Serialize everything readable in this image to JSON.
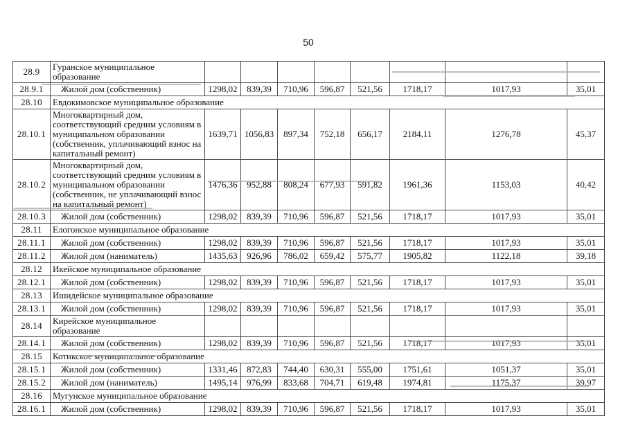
{
  "page_number": "50",
  "table": {
    "rows": [
      {
        "num": "28.9",
        "kind": "section_empty",
        "name": "Гуранское муниципальное образование"
      },
      {
        "num": "28.9.1",
        "kind": "data",
        "name": "Жилой дом (собственник)",
        "values": [
          "1298,02",
          "839,39",
          "710,96",
          "596,87",
          "521,56",
          "1718,17",
          "1017,93",
          "35,01"
        ]
      },
      {
        "num": "28.10",
        "kind": "section_span",
        "name": "Евдокимовское муниципальное образование"
      },
      {
        "num": "28.10.1",
        "kind": "data",
        "name": "Многоквартирный дом, соответствующий средним условиям в муниципальном образовании (собственник, уплачивающий взнос на капитальный ремонт)",
        "values": [
          "1639,71",
          "1056,83",
          "897,34",
          "752,18",
          "656,17",
          "2184,11",
          "1276,78",
          "45,37"
        ]
      },
      {
        "num": "28.10.2",
        "kind": "data",
        "name": "Многоквартирный дом, соответствующий средним условиям в муниципальном образовании (собственник, не уплачивающий взнос на капитальный ремонт)",
        "values": [
          "1476,36",
          "952,88",
          "808,24",
          "677,93",
          "591,82",
          "1961,36",
          "1153,03",
          "40,42"
        ]
      },
      {
        "num": "28.10.3",
        "kind": "data",
        "name": "Жилой дом (собственник)",
        "values": [
          "1298,02",
          "839,39",
          "710,96",
          "596,87",
          "521,56",
          "1718,17",
          "1017,93",
          "35,01"
        ]
      },
      {
        "num": "28.11",
        "kind": "section_span",
        "name": "Елогонское муниципальное образование"
      },
      {
        "num": "28.11.1",
        "kind": "data",
        "name": "Жилой дом (собственник)",
        "values": [
          "1298,02",
          "839,39",
          "710,96",
          "596,87",
          "521,56",
          "1718,17",
          "1017,93",
          "35,01"
        ]
      },
      {
        "num": "28.11.2",
        "kind": "data",
        "name": "Жилой дом (наниматель)",
        "values": [
          "1435,63",
          "926,96",
          "786,02",
          "659,42",
          "575,77",
          "1905,82",
          "1122,18",
          "39,18"
        ]
      },
      {
        "num": "28.12",
        "kind": "section_span",
        "name": "Икейское муниципальное образование"
      },
      {
        "num": "28.12.1",
        "kind": "data",
        "name": "Жилой дом (собственник)",
        "values": [
          "1298,02",
          "839,39",
          "710,96",
          "596,87",
          "521,56",
          "1718,17",
          "1017,93",
          "35,01"
        ]
      },
      {
        "num": "28.13",
        "kind": "section_span",
        "name": "Ишидейское муниципальное образование"
      },
      {
        "num": "28.13.1",
        "kind": "data",
        "name": "Жилой дом (собственник)",
        "values": [
          "1298,02",
          "839,39",
          "710,96",
          "596,87",
          "521,56",
          "1718,17",
          "1017,93",
          "35,01"
        ]
      },
      {
        "num": "28.14",
        "kind": "section_empty",
        "name": "Кирейское муниципальное образование"
      },
      {
        "num": "28.14.1",
        "kind": "data",
        "name": "Жилой дом (собственник)",
        "values": [
          "1298,02",
          "839,39",
          "710,96",
          "596,87",
          "521,56",
          "1718,17",
          "1017,93",
          "35,01"
        ]
      },
      {
        "num": "28.15",
        "kind": "section_span",
        "name": "Котикское муниципальное образование"
      },
      {
        "num": "28.15.1",
        "kind": "data",
        "name": "Жилой дом (собственник)",
        "values": [
          "1331,46",
          "872,83",
          "744,40",
          "630,31",
          "555,00",
          "1751,61",
          "1051,37",
          "35,01"
        ]
      },
      {
        "num": "28.15.2",
        "kind": "data",
        "name": "Жилой дом (наниматель)",
        "values": [
          "1495,14",
          "976,99",
          "833,68",
          "704,71",
          "619,48",
          "1974,81",
          "1175,37",
          "39,97"
        ]
      },
      {
        "num": "28.16",
        "kind": "section_span",
        "name": "Мугунское муниципальное образование"
      },
      {
        "num": "28.16.1",
        "kind": "data",
        "name": "Жилой дом (собственник)",
        "values": [
          "1298,02",
          "839,39",
          "710,96",
          "596,87",
          "521,56",
          "1718,17",
          "1017,93",
          "35,01"
        ]
      }
    ]
  }
}
